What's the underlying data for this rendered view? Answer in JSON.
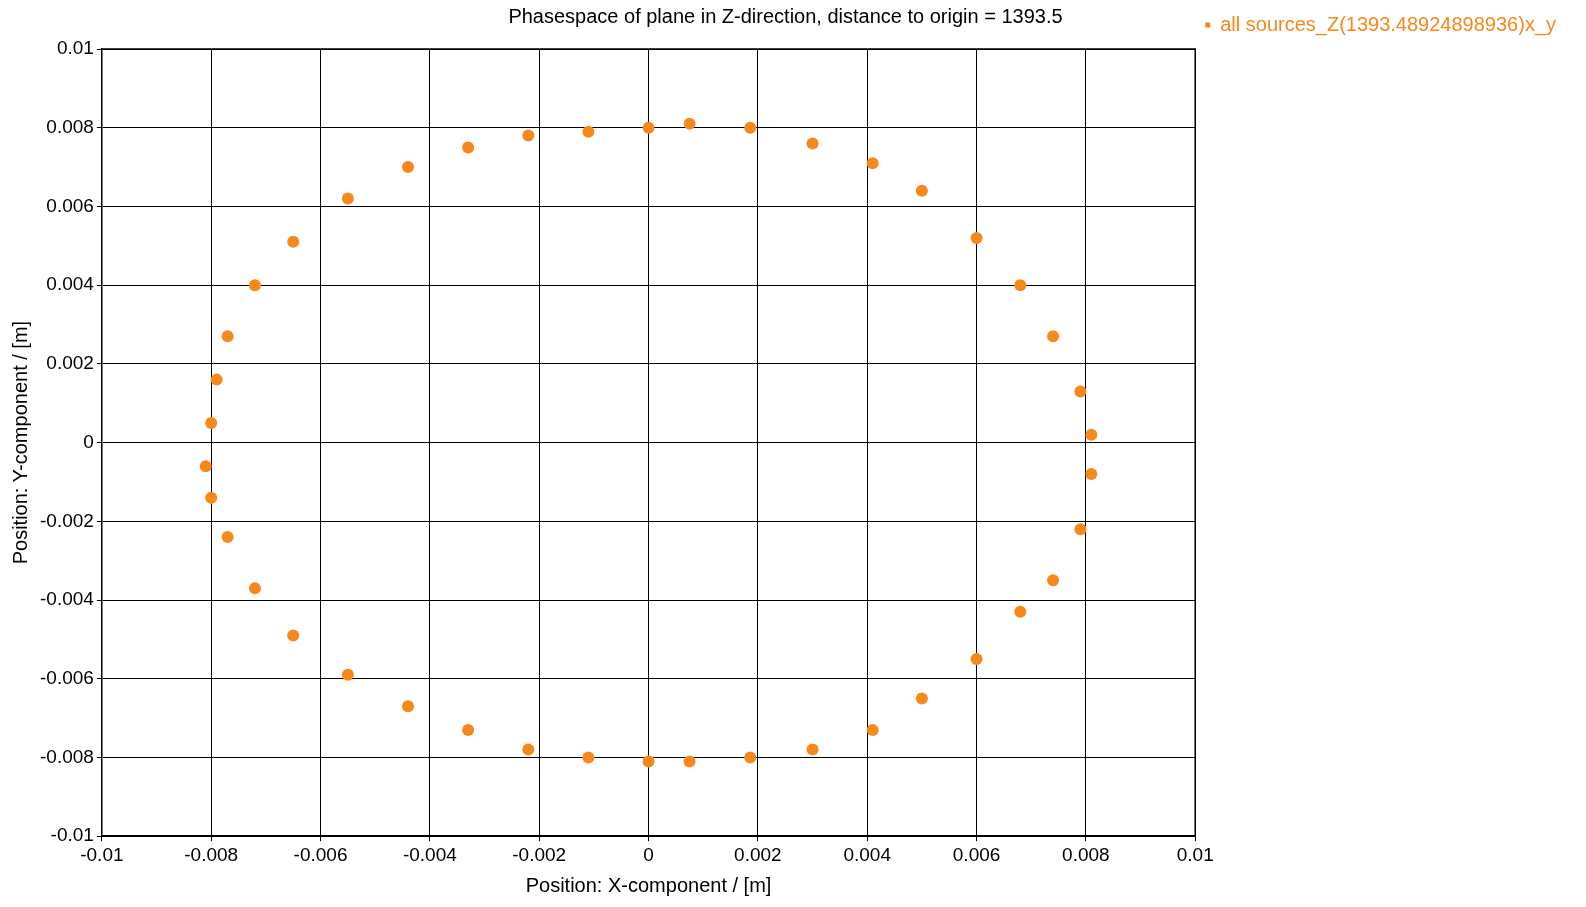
{
  "chart_data": {
    "type": "scatter",
    "title": "Phasespace of plane in Z-direction, distance to origin = 1393.5",
    "xlabel": "Position: X-component / [m]",
    "ylabel": "Position: Y-component / [m]",
    "xlim": [
      -0.01,
      0.01
    ],
    "ylim": [
      -0.01,
      0.01
    ],
    "xticks": [
      -0.01,
      -0.008,
      -0.006,
      -0.004,
      -0.002,
      0,
      0.002,
      0.004,
      0.006,
      0.008,
      0.01
    ],
    "yticks": [
      -0.01,
      -0.008,
      -0.006,
      -0.004,
      -0.002,
      0,
      0.002,
      0.004,
      0.006,
      0.008,
      0.01
    ],
    "grid": true,
    "legend": "top right",
    "marker": "circle",
    "series": [
      {
        "name": "all sources_Z(1393.48924898936)x_y",
        "color": "#f7881c",
        "x": [
          0,
          0.00075,
          0.00186,
          0.003,
          0.0041,
          0.005,
          0.006,
          0.0068,
          0.0074,
          0.0079,
          0.0081,
          0.0081,
          0.0079,
          0.0074,
          0.0068,
          0.006,
          0.005,
          0.0041,
          0.003,
          0.00186,
          0.00075,
          0,
          -0.0011,
          -0.0022,
          -0.0033,
          -0.0044,
          -0.0055,
          -0.0065,
          -0.0072,
          -0.0077,
          -0.008,
          -0.0081,
          -0.008,
          -0.0079,
          -0.0077,
          -0.0072,
          -0.0065,
          -0.0055,
          -0.0044,
          -0.0033,
          -0.0022,
          -0.0011
        ],
        "values": [
          0.008,
          0.0081,
          0.008,
          0.0076,
          0.0071,
          0.0064,
          0.0052,
          0.004,
          0.0027,
          0.0013,
          0.0002,
          -0.0008,
          -0.0022,
          -0.0035,
          -0.0043,
          -0.0055,
          -0.0065,
          -0.0073,
          -0.0078,
          -0.008,
          -0.0081,
          -0.0081,
          -0.008,
          -0.0078,
          -0.0073,
          -0.0067,
          -0.0059,
          -0.0049,
          -0.0037,
          -0.0024,
          -0.0014,
          -0.0006,
          0.0005,
          0.0016,
          0.0027,
          0.004,
          0.0051,
          0.0062,
          0.007,
          0.0075,
          0.0078,
          0.0079
        ]
      }
    ]
  }
}
